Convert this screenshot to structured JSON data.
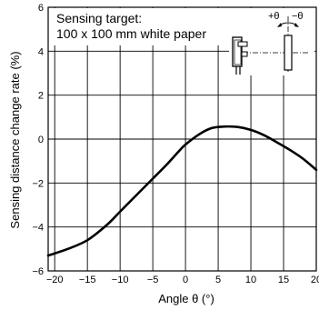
{
  "chart_data": {
    "type": "line",
    "title": "",
    "xlabel": "Angle θ (°)",
    "ylabel": "Sensing distance change rate (%)",
    "xlim": [
      -21,
      20
    ],
    "ylim": [
      -6,
      6
    ],
    "x_ticks": [
      -20,
      -15,
      -10,
      -5,
      0,
      5,
      10,
      15,
      20
    ],
    "y_ticks": [
      -6,
      -4,
      -2,
      0,
      2,
      4,
      6
    ],
    "x_tick_labels": [
      "−20",
      "−15",
      "−10",
      "−5",
      "0",
      "5",
      "10",
      "15",
      "20"
    ],
    "y_tick_labels": [
      "−6",
      "−4",
      "−2",
      "0",
      "2",
      "4",
      "6"
    ],
    "grid": true,
    "annotation_lines": [
      "Sensing target:",
      "100 x 100 mm white paper"
    ],
    "inset_labels": {
      "plus": "+θ",
      "minus": "−θ"
    },
    "series": [
      {
        "x": [
          -21,
          -18,
          -15,
          -12,
          -10,
          -8,
          -5,
          -3,
          -1,
          0,
          2,
          4,
          6,
          8,
          10,
          12,
          14,
          16,
          18,
          20
        ],
        "y": [
          -5.3,
          -5.0,
          -4.6,
          -3.9,
          -3.3,
          -2.7,
          -1.8,
          -1.2,
          -0.55,
          -0.25,
          0.2,
          0.5,
          0.57,
          0.55,
          0.42,
          0.18,
          -0.15,
          -0.5,
          -0.9,
          -1.4
        ]
      }
    ]
  }
}
